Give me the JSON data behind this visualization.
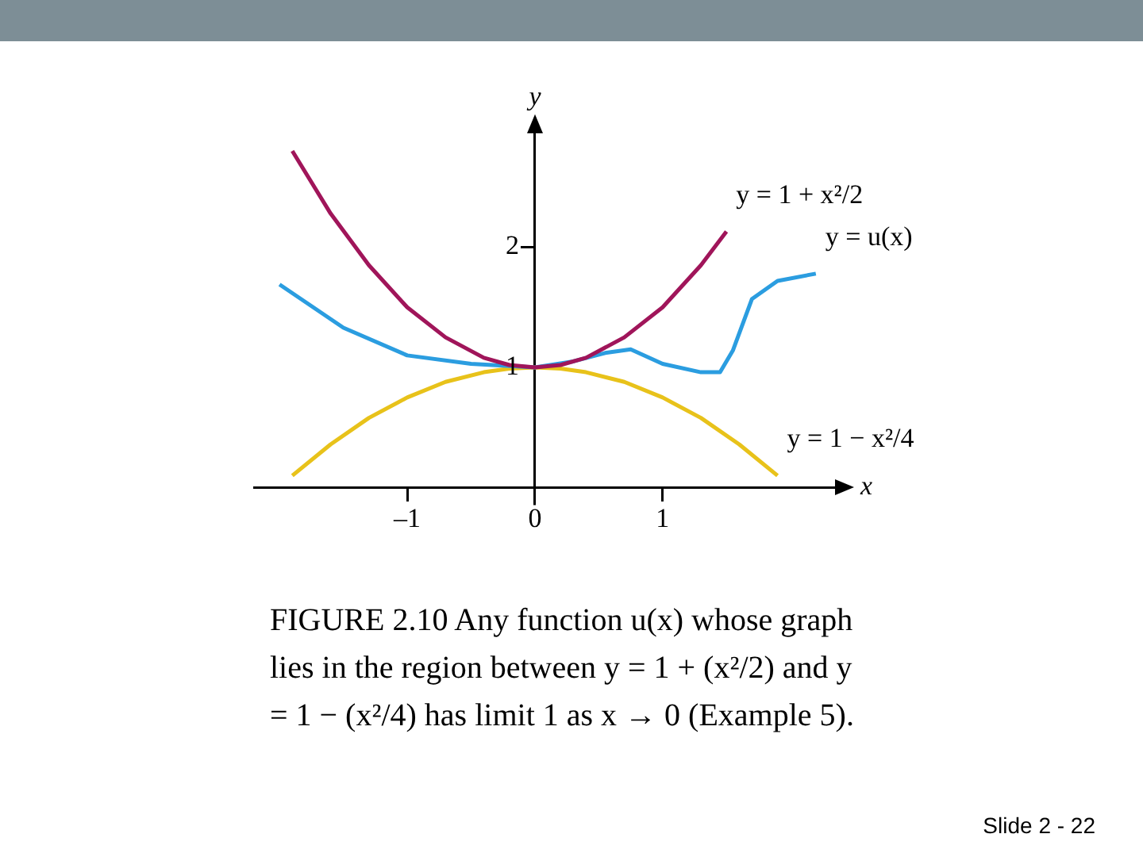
{
  "chart_data": {
    "type": "line",
    "xlabel": "x",
    "ylabel": "y",
    "xlim": [
      -2.2,
      2.4
    ],
    "ylim": [
      -0.3,
      3.0
    ],
    "xticks": [
      {
        "value": -1,
        "label": "–1"
      },
      0,
      1
    ],
    "yticks": [
      1,
      2
    ],
    "grid": false,
    "marker": "none",
    "line_style": "solid",
    "series": [
      {
        "name": "y = 1 + x²/2",
        "color": "#a0155a",
        "x": [
          -1.9,
          -1.6,
          -1.3,
          -1.0,
          -0.7,
          -0.4,
          -0.2,
          0,
          0.2,
          0.4,
          0.7,
          1.0,
          1.3,
          1.5
        ],
        "values": [
          2.8,
          2.28,
          1.85,
          1.5,
          1.25,
          1.08,
          1.02,
          1,
          1.02,
          1.08,
          1.25,
          1.5,
          1.85,
          2.13
        ]
      },
      {
        "name": "y = u(x)",
        "color": "#2b9de0",
        "x": [
          -2.0,
          -1.5,
          -1.0,
          -0.5,
          0,
          0.3,
          0.55,
          0.75,
          1.0,
          1.3,
          1.45,
          1.55,
          1.7,
          1.9,
          2.2
        ],
        "values": [
          1.69,
          1.33,
          1.1,
          1.03,
          1,
          1.05,
          1.12,
          1.15,
          1.03,
          0.96,
          0.96,
          1.14,
          1.57,
          1.72,
          1.78
        ]
      },
      {
        "name": "y = 1 − x²/4",
        "color": "#e8c21a",
        "x": [
          -1.9,
          -1.6,
          -1.3,
          -1.0,
          -0.7,
          -0.4,
          -0.2,
          0,
          0.2,
          0.4,
          0.7,
          1.0,
          1.3,
          1.6,
          1.9
        ],
        "values": [
          0.1,
          0.36,
          0.58,
          0.75,
          0.88,
          0.96,
          0.99,
          1,
          0.99,
          0.96,
          0.88,
          0.75,
          0.58,
          0.36,
          0.1
        ]
      }
    ],
    "annotations": [
      "FIGURE 2.10  Any function u(x) whose graph lies in the region between y = 1 + (x²/2) and y = 1 − (x²/4) has limit 1 as x → 0 (Example 5).",
      "Slide 2 - 22"
    ]
  }
}
